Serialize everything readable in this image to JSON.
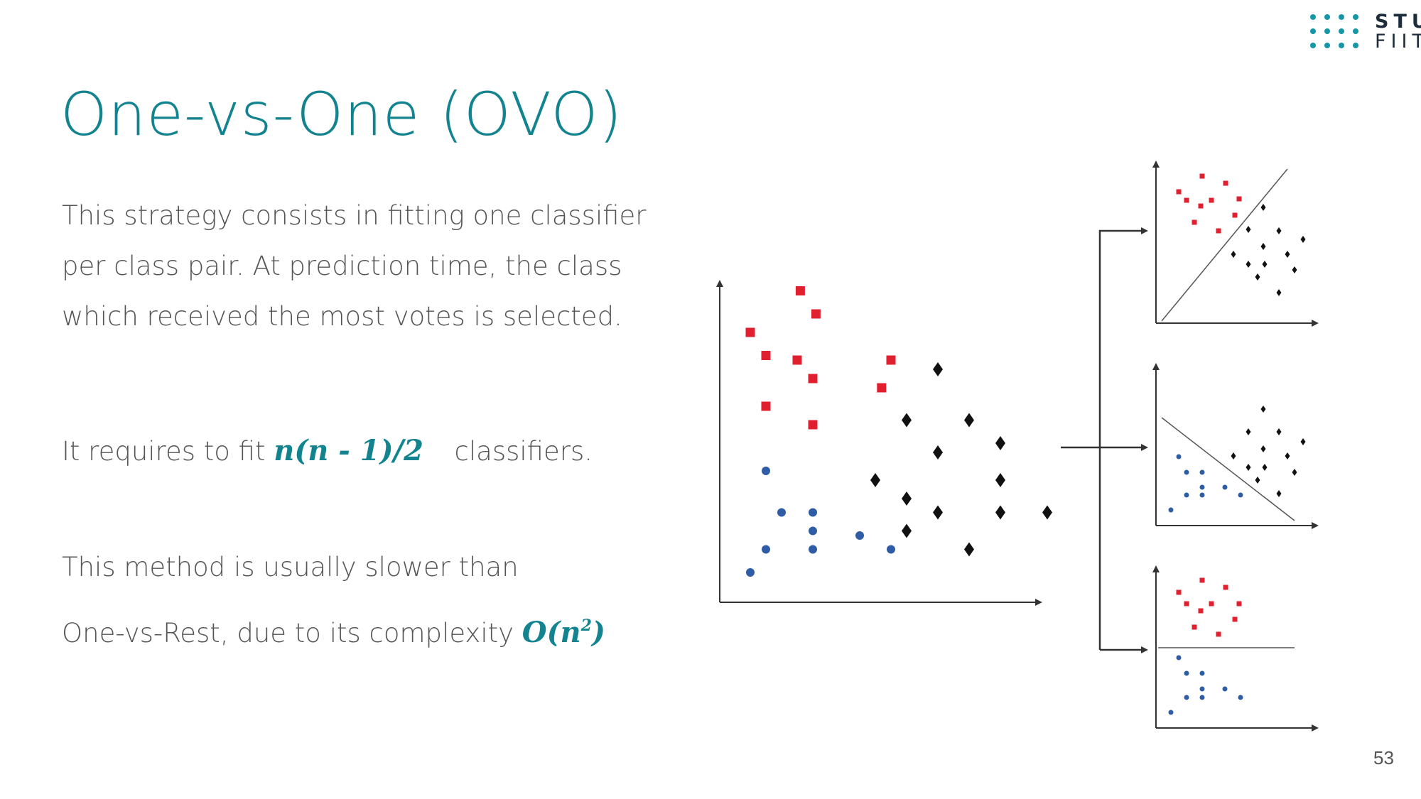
{
  "slide": {
    "title": "One-vs-One (OVO)",
    "paragraph_1": "This strategy consists in fitting one classifier per class pair. At prediction time, the class which received the most votes is selected.",
    "paragraph_2_before": "It requires to fit",
    "paragraph_2_formula": "n(n - 1)/2",
    "paragraph_2_after": "classifiers.",
    "paragraph_3_line1": "This method is usually slower than",
    "paragraph_3_line2": "One-vs-Rest, due to its complexity",
    "complexity_base": "O(n",
    "complexity_exponent": "2",
    "complexity_close": ")",
    "page_number": "53"
  },
  "logo": {
    "text_top": "STU",
    "text_bottom": "FIIT",
    "color_dots": "#1597a8",
    "color_text": "#1e2d3d"
  },
  "colors": {
    "accent": "#13848f",
    "body_text": "#555555",
    "class_square": "#e0202f",
    "class_diamond": "#111111",
    "class_circle": "#2f5da5"
  },
  "diagram": {
    "main_plot": {
      "squares": [
        [
          1.0,
          5.6
        ],
        [
          2.6,
          6.5
        ],
        [
          1.5,
          5.1
        ],
        [
          2.5,
          5.0
        ],
        [
          3.1,
          6.0
        ],
        [
          5.5,
          5.0
        ],
        [
          3.0,
          4.6
        ],
        [
          5.2,
          4.4
        ],
        [
          1.5,
          4.0
        ],
        [
          3.0,
          3.6
        ]
      ],
      "diamonds": [
        [
          7.0,
          4.8
        ],
        [
          6.0,
          3.7
        ],
        [
          8.0,
          3.7
        ],
        [
          9.0,
          3.2
        ],
        [
          7.0,
          3.0
        ],
        [
          9.0,
          2.4
        ],
        [
          5.0,
          2.4
        ],
        [
          6.0,
          2.0
        ],
        [
          7.0,
          1.7
        ],
        [
          9.0,
          1.7
        ],
        [
          10.5,
          1.7
        ],
        [
          6.0,
          1.3
        ],
        [
          8.0,
          0.9
        ]
      ],
      "circles": [
        [
          1.5,
          2.6
        ],
        [
          2.0,
          1.7
        ],
        [
          3.0,
          1.7
        ],
        [
          3.0,
          1.3
        ],
        [
          4.5,
          1.2
        ],
        [
          1.5,
          0.9
        ],
        [
          3.0,
          0.9
        ],
        [
          5.5,
          0.9
        ],
        [
          1.0,
          0.4
        ]
      ]
    },
    "subplot_top": {
      "pair": "squares vs diamonds",
      "boundary": "diagonal"
    },
    "subplot_middle": {
      "pair": "circles vs diamonds",
      "boundary": "diagonal"
    },
    "subplot_bottom": {
      "pair": "squares vs circles",
      "boundary": "horizontal"
    }
  }
}
